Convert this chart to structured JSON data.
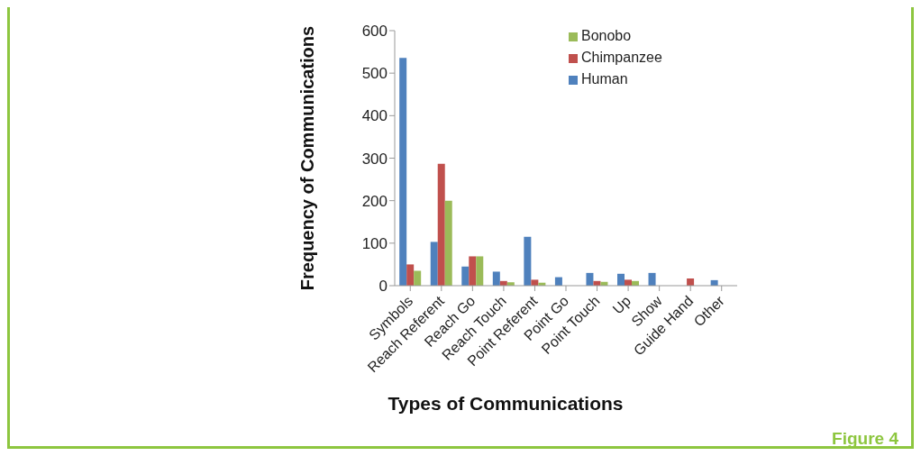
{
  "chart_data": {
    "type": "bar",
    "xlabel": "Types of Communications",
    "ylabel": "Frequency of Communications",
    "categories": [
      "Symbols",
      "Reach Referent",
      "Reach Go",
      "Reach Touch",
      "Point Referent",
      "Point Go",
      "Point Touch",
      "Up",
      "Show",
      "Guide Hand",
      "Other"
    ],
    "series": [
      {
        "name": "Human",
        "color": "#4f81bd",
        "values": [
          536,
          103,
          45,
          33,
          115,
          20,
          30,
          28,
          30,
          null,
          13
        ]
      },
      {
        "name": "Chimpanzee",
        "color": "#c0504d",
        "values": [
          50,
          287,
          69,
          11,
          14,
          null,
          11,
          14,
          null,
          17,
          null
        ]
      },
      {
        "name": "Bonobo",
        "color": "#9bbb59",
        "values": [
          35,
          200,
          69,
          8,
          7,
          null,
          9,
          11,
          null,
          null,
          null
        ]
      }
    ],
    "ylim": [
      0,
      600
    ],
    "yticks": [
      0,
      100,
      200,
      300,
      400,
      500,
      600
    ],
    "grid": false,
    "legend": "top right",
    "annotations": [
      "Figure 4"
    ]
  }
}
